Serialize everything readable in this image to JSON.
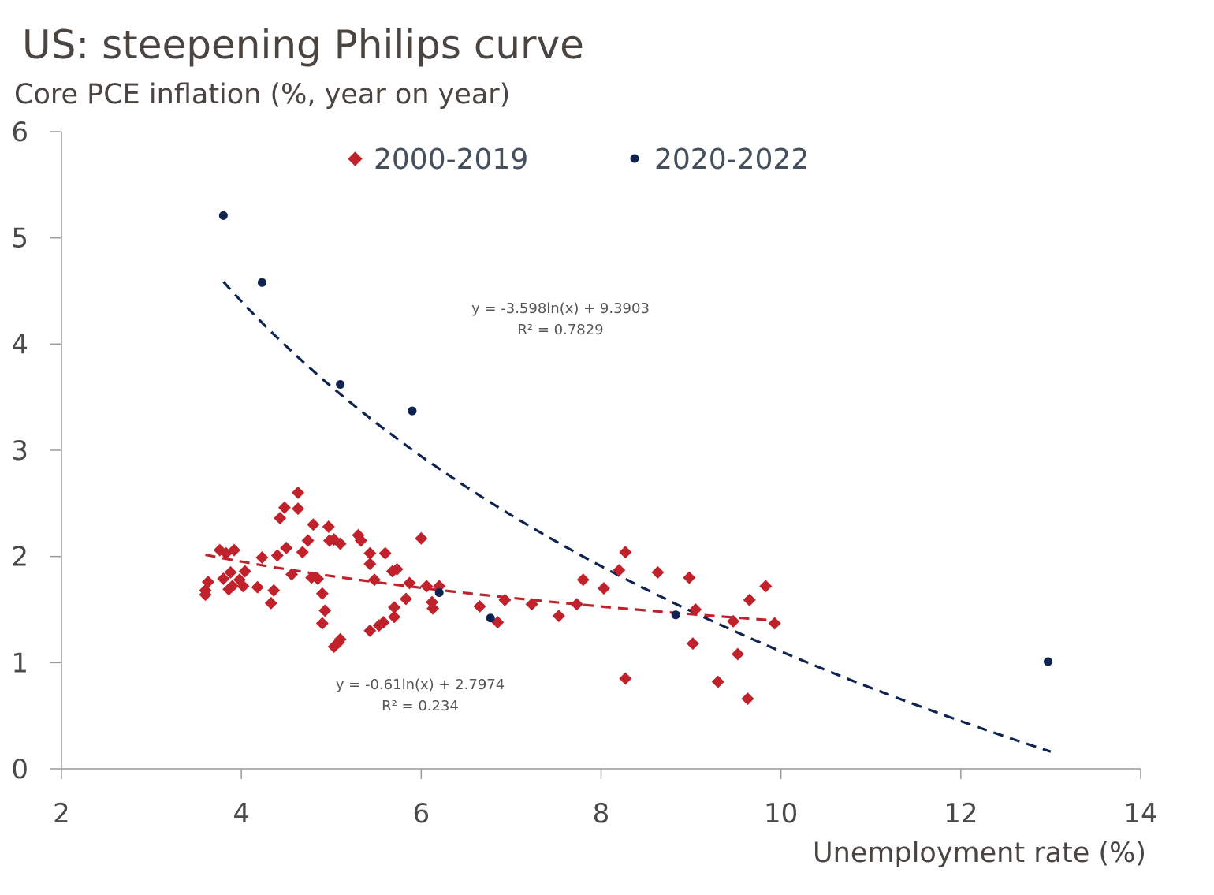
{
  "title": "US: steepening Philips curve",
  "chart_data": {
    "type": "scatter",
    "title": "US: steepening Philips curve",
    "ylabel": "Core PCE inflation (%, year on year)",
    "xlabel": "Unemployment rate (%)",
    "xlim": [
      2,
      14
    ],
    "ylim": [
      0,
      6
    ],
    "xticks": [
      2,
      4,
      6,
      8,
      10,
      12,
      14
    ],
    "yticks": [
      0,
      1,
      2,
      3,
      4,
      5,
      6
    ],
    "legend_position": "top",
    "series": [
      {
        "name": "2000-2019",
        "marker": "diamond",
        "color": "#c0212a",
        "points": [
          [
            3.6,
            1.64
          ],
          [
            3.6,
            1.68
          ],
          [
            3.63,
            1.76
          ],
          [
            3.76,
            2.06
          ],
          [
            3.8,
            1.79
          ],
          [
            3.83,
            2.03
          ],
          [
            3.86,
            1.69
          ],
          [
            3.88,
            1.85
          ],
          [
            3.9,
            1.72
          ],
          [
            3.92,
            2.06
          ],
          [
            3.98,
            1.78
          ],
          [
            4.02,
            1.72
          ],
          [
            4.04,
            1.86
          ],
          [
            4.18,
            1.71
          ],
          [
            4.23,
            1.99
          ],
          [
            4.33,
            1.56
          ],
          [
            4.36,
            1.68
          ],
          [
            4.4,
            2.01
          ],
          [
            4.43,
            2.36
          ],
          [
            4.48,
            2.46
          ],
          [
            4.5,
            2.08
          ],
          [
            4.56,
            1.83
          ],
          [
            4.63,
            2.6
          ],
          [
            4.63,
            2.45
          ],
          [
            4.68,
            2.04
          ],
          [
            4.74,
            2.15
          ],
          [
            4.78,
            1.8
          ],
          [
            4.8,
            2.3
          ],
          [
            4.85,
            1.79
          ],
          [
            4.9,
            1.65
          ],
          [
            4.9,
            1.37
          ],
          [
            4.93,
            1.49
          ],
          [
            4.97,
            2.28
          ],
          [
            4.98,
            2.15
          ],
          [
            5.03,
            2.16
          ],
          [
            5.03,
            1.15
          ],
          [
            5.08,
            1.19
          ],
          [
            5.1,
            1.22
          ],
          [
            5.1,
            2.12
          ],
          [
            5.3,
            2.2
          ],
          [
            5.33,
            2.15
          ],
          [
            5.43,
            2.03
          ],
          [
            5.43,
            1.93
          ],
          [
            5.43,
            1.3
          ],
          [
            5.48,
            1.78
          ],
          [
            5.53,
            1.35
          ],
          [
            5.58,
            1.38
          ],
          [
            5.6,
            2.03
          ],
          [
            5.68,
            1.86
          ],
          [
            5.7,
            1.43
          ],
          [
            5.7,
            1.52
          ],
          [
            5.73,
            1.88
          ],
          [
            5.83,
            1.6
          ],
          [
            5.87,
            1.75
          ],
          [
            6.0,
            2.17
          ],
          [
            6.06,
            1.72
          ],
          [
            6.12,
            1.57
          ],
          [
            6.13,
            1.51
          ],
          [
            6.2,
            1.72
          ],
          [
            6.65,
            1.53
          ],
          [
            6.85,
            1.38
          ],
          [
            6.93,
            1.59
          ],
          [
            7.23,
            1.55
          ],
          [
            7.53,
            1.44
          ],
          [
            7.73,
            1.55
          ],
          [
            7.8,
            1.78
          ],
          [
            8.03,
            1.7
          ],
          [
            8.2,
            1.87
          ],
          [
            8.27,
            2.04
          ],
          [
            8.27,
            0.85
          ],
          [
            8.63,
            1.85
          ],
          [
            8.98,
            1.8
          ],
          [
            9.02,
            1.18
          ],
          [
            9.05,
            1.5
          ],
          [
            9.3,
            0.82
          ],
          [
            9.47,
            1.39
          ],
          [
            9.52,
            1.08
          ],
          [
            9.63,
            0.66
          ],
          [
            9.65,
            1.59
          ],
          [
            9.83,
            1.72
          ],
          [
            9.93,
            1.37
          ]
        ],
        "trendline": {
          "type": "log",
          "a": -0.61,
          "b": 2.7974,
          "x_from": 3.6,
          "x_to": 9.95,
          "equation": "y = -0.61ln(x) + 2.7974",
          "r2": "R² = 0.234"
        }
      },
      {
        "name": "2020-2022",
        "marker": "circle",
        "color": "#0e2350",
        "points": [
          [
            3.8,
            5.21
          ],
          [
            4.23,
            4.58
          ],
          [
            5.1,
            3.62
          ],
          [
            5.9,
            3.37
          ],
          [
            6.2,
            1.66
          ],
          [
            6.77,
            1.42
          ],
          [
            8.83,
            1.45
          ],
          [
            12.97,
            1.01
          ]
        ],
        "trendline": {
          "type": "log",
          "a": -3.598,
          "b": 9.3903,
          "x_from": 3.8,
          "x_to": 13.0,
          "equation": "y = -3.598ln(x) + 9.3903",
          "r2": "R² = 0.7829"
        }
      }
    ]
  }
}
